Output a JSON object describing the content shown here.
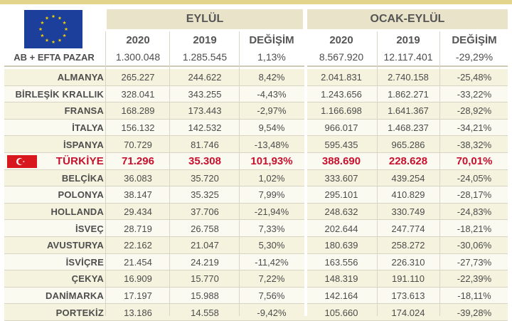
{
  "header": {
    "period1": "EYLÜL",
    "period2": "OCAK-EYLÜL",
    "cols": [
      "2020",
      "2019",
      "DEĞİŞİM",
      "2020",
      "2019",
      "DEĞİŞİM"
    ],
    "flag_icon": "eu-flag-icon"
  },
  "total": {
    "label": "AB + EFTA PAZAR",
    "values": [
      "1.300.048",
      "1.285.545",
      "1,13%",
      "8.567.920",
      "12.117.401",
      "-29,29%"
    ]
  },
  "highlight_color": "#c8102e",
  "rows": [
    {
      "name": "ALMANYA",
      "v": [
        "265.227",
        "244.622",
        "8,42%",
        "2.041.831",
        "2.740.158",
        "-25,48%"
      ]
    },
    {
      "name": "BİRLEŞİK KRALLIK",
      "v": [
        "328.041",
        "343.255",
        "-4,43%",
        "1.243.656",
        "1.862.271",
        "-33,22%"
      ]
    },
    {
      "name": "FRANSA",
      "v": [
        "168.289",
        "173.443",
        "-2,97%",
        "1.166.698",
        "1.641.367",
        "-28,92%"
      ]
    },
    {
      "name": "İTALYA",
      "v": [
        "156.132",
        "142.532",
        "9,54%",
        "966.017",
        "1.468.237",
        "-34,21%"
      ]
    },
    {
      "name": "İSPANYA",
      "v": [
        "70.729",
        "81.746",
        "-13,48%",
        "595.435",
        "965.286",
        "-38,32%"
      ]
    },
    {
      "name": "TÜRKİYE",
      "v": [
        "71.296",
        "35.308",
        "101,93%",
        "388.690",
        "228.628",
        "70,01%"
      ],
      "highlight": true
    },
    {
      "name": "BELÇİKA",
      "v": [
        "36.083",
        "35.720",
        "1,02%",
        "333.607",
        "439.254",
        "-24,05%"
      ]
    },
    {
      "name": "POLONYA",
      "v": [
        "38.147",
        "35.325",
        "7,99%",
        "295.101",
        "410.829",
        "-28,17%"
      ]
    },
    {
      "name": "HOLLANDA",
      "v": [
        "29.434",
        "37.706",
        "-21,94%",
        "248.632",
        "330.749",
        "-24,83%"
      ]
    },
    {
      "name": "İSVEÇ",
      "v": [
        "28.719",
        "26.758",
        "7,33%",
        "202.644",
        "247.774",
        "-18,21%"
      ]
    },
    {
      "name": "AVUSTURYA",
      "v": [
        "22.162",
        "21.047",
        "5,30%",
        "180.639",
        "258.272",
        "-30,06%"
      ]
    },
    {
      "name": "İSVİÇRE",
      "v": [
        "21.454",
        "24.219",
        "-11,42%",
        "163.556",
        "226.310",
        "-27,73%"
      ]
    },
    {
      "name": "ÇEKYA",
      "v": [
        "16.909",
        "15.770",
        "7,22%",
        "148.319",
        "191.110",
        "-22,39%"
      ]
    },
    {
      "name": "DANİMARKA",
      "v": [
        "17.197",
        "15.988",
        "7,56%",
        "142.164",
        "173.613",
        "-18,11%"
      ]
    },
    {
      "name": "PORTEKİZ",
      "v": [
        "13.186",
        "14.558",
        "-9,42%",
        "105.660",
        "174.024",
        "-39,28%"
      ]
    }
  ]
}
